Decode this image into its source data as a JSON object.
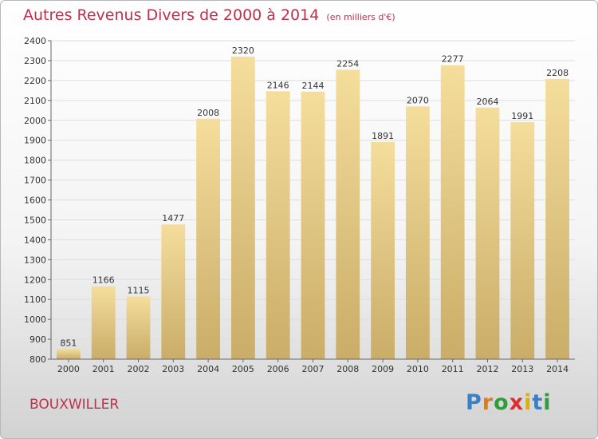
{
  "title": "Autres Revenus Divers de 2000 à 2014",
  "subtitle": "(en milliers d'€)",
  "commune": "BOUXWILLER",
  "logo": {
    "letters": [
      "P",
      "r",
      "o",
      "x",
      "i",
      "t",
      "i"
    ],
    "colors": [
      "#3b7fc4",
      "#e07b1a",
      "#2e9e3a",
      "#d83030",
      "#e0b000",
      "#3b7fc4",
      "#2e9e3a"
    ]
  },
  "colors": {
    "title": "#c0304a",
    "bar_light": "#f5dd9c",
    "bar_dark": "#c9ad68",
    "grid": "#dedede"
  },
  "chart_data": {
    "type": "bar",
    "categories": [
      "2000",
      "2001",
      "2002",
      "2003",
      "2004",
      "2005",
      "2006",
      "2007",
      "2008",
      "2009",
      "2010",
      "2011",
      "2012",
      "2013",
      "2014"
    ],
    "values": [
      851,
      1166,
      1115,
      1477,
      2008,
      2320,
      2146,
      2144,
      2254,
      1891,
      2070,
      2277,
      2064,
      1991,
      2208
    ],
    "ylim": [
      800,
      2400
    ],
    "yticks": [
      800,
      900,
      1000,
      1100,
      1200,
      1300,
      1400,
      1500,
      1600,
      1700,
      1800,
      1900,
      2000,
      2100,
      2200,
      2300,
      2400
    ],
    "grid": true,
    "data_labels": true
  }
}
